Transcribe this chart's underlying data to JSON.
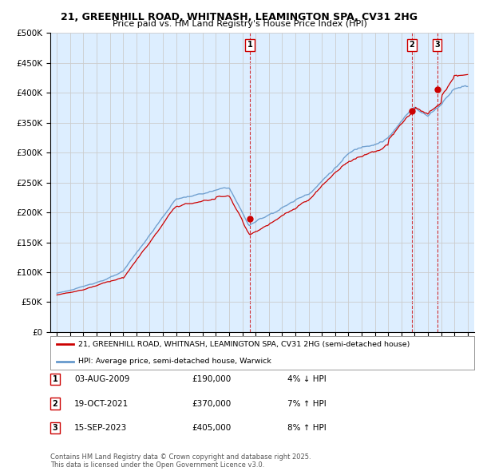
{
  "title": "21, GREENHILL ROAD, WHITNASH, LEAMINGTON SPA, CV31 2HG",
  "subtitle": "Price paid vs. HM Land Registry's House Price Index (HPI)",
  "red_label": "21, GREENHILL ROAD, WHITNASH, LEAMINGTON SPA, CV31 2HG (semi-detached house)",
  "blue_label": "HPI: Average price, semi-detached house, Warwick",
  "footer": "Contains HM Land Registry data © Crown copyright and database right 2025.\nThis data is licensed under the Open Government Licence v3.0.",
  "sale_events": [
    {
      "num": 1,
      "date": "03-AUG-2009",
      "price": 190000,
      "pct": "4%",
      "dir": "↓",
      "x_year": 2009.58
    },
    {
      "num": 2,
      "date": "19-OCT-2021",
      "price": 370000,
      "pct": "7%",
      "dir": "↑",
      "x_year": 2021.79
    },
    {
      "num": 3,
      "date": "15-SEP-2023",
      "price": 405000,
      "pct": "8%",
      "dir": "↑",
      "x_year": 2023.7
    }
  ],
  "ylim": [
    0,
    500000
  ],
  "xlim": [
    1994.5,
    2026.5
  ],
  "yticks": [
    0,
    50000,
    100000,
    150000,
    200000,
    250000,
    300000,
    350000,
    400000,
    450000,
    500000
  ],
  "xticks": [
    1995,
    1996,
    1997,
    1998,
    1999,
    2000,
    2001,
    2002,
    2003,
    2004,
    2005,
    2006,
    2007,
    2008,
    2009,
    2010,
    2011,
    2012,
    2013,
    2014,
    2015,
    2016,
    2017,
    2018,
    2019,
    2020,
    2021,
    2022,
    2023,
    2024,
    2025,
    2026
  ],
  "grid_color": "#cccccc",
  "bg_color": "#ddeeff",
  "red_color": "#cc0000",
  "blue_color": "#6699cc",
  "figsize": [
    6.0,
    5.9
  ],
  "dpi": 100
}
